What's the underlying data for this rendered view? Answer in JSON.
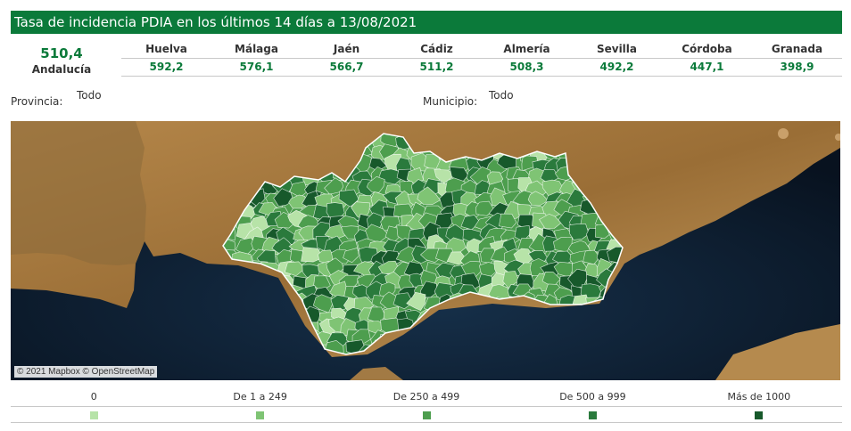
{
  "header": {
    "title": "Tasa de incidencia PDIA en los últimos 14 días a 13/08/2021"
  },
  "summary": {
    "value": "510,4",
    "label": "Andalucía"
  },
  "provinces": [
    {
      "name": "Huelva",
      "value": "592,2"
    },
    {
      "name": "Málaga",
      "value": "576,1"
    },
    {
      "name": "Jaén",
      "value": "566,7"
    },
    {
      "name": "Cádiz",
      "value": "511,2"
    },
    {
      "name": "Almería",
      "value": "508,3"
    },
    {
      "name": "Sevilla",
      "value": "492,2"
    },
    {
      "name": "Córdoba",
      "value": "447,1"
    },
    {
      "name": "Granada",
      "value": "398,9"
    }
  ],
  "filters": {
    "provincia": {
      "label": "Provincia:",
      "value": "Todo"
    },
    "municipio": {
      "label": "Municipio:",
      "value": "Todo"
    }
  },
  "map": {
    "attribution": "© 2021 Mapbox © OpenStreetMap",
    "colors": {
      "sea": "#0b1a2c",
      "land": "#a97b3f",
      "border": "#ffffff"
    }
  },
  "legend": [
    {
      "label": "0",
      "color": "#b7e3a8"
    },
    {
      "label": "De 1 a 249",
      "color": "#7fc474"
    },
    {
      "label": "De 250 a 499",
      "color": "#4d9e4e"
    },
    {
      "label": "De 500 a 999",
      "color": "#2a7a3c"
    },
    {
      "label": "Más de 1000",
      "color": "#17592b"
    }
  ]
}
